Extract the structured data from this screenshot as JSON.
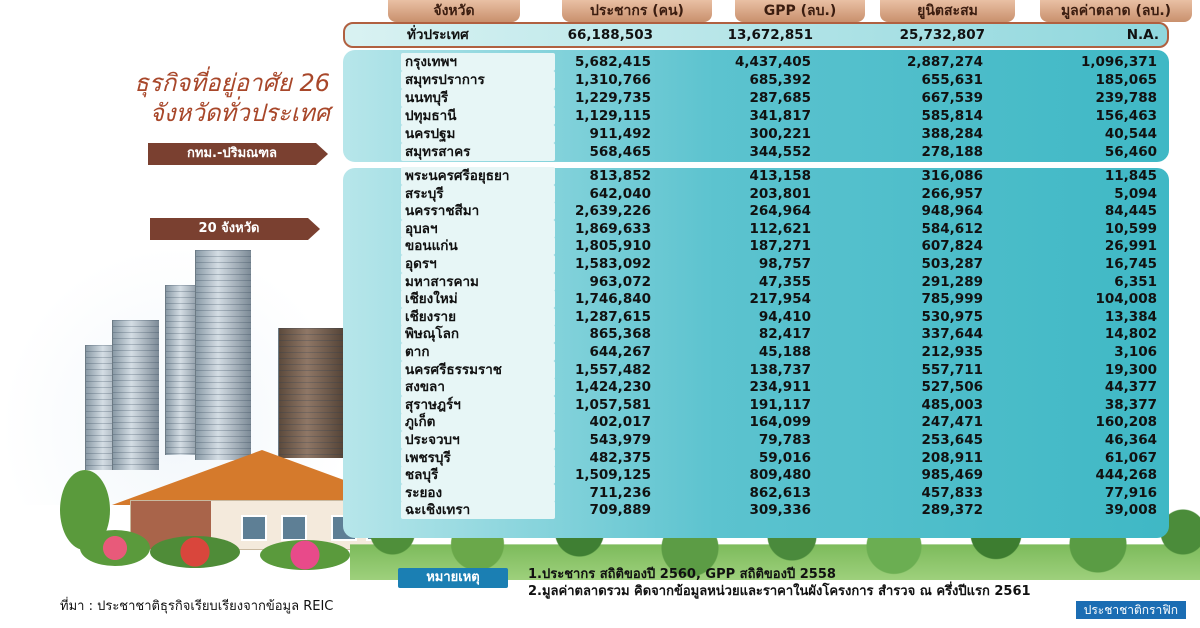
{
  "title": {
    "line1": "ธุรกิจที่อยู่อาศัย 26",
    "line2": "จังหวัดทั่วประเทศ"
  },
  "group_labels": {
    "bkk": "กทม.-ปริมณฑล",
    "twenty": "20 จังหวัด"
  },
  "columns": {
    "province": "จังหวัด",
    "population": "ประชากร (คน)",
    "gpp": "GPP (ลบ.)",
    "accumulated_units": "ยูนิตสะสม",
    "market_value": "มูลค่าตลาด (ลบ.)"
  },
  "national": {
    "name": "ทั่วประเทศ",
    "population": "66,188,503",
    "gpp": "13,672,851",
    "units": "25,732,807",
    "market": "N.A."
  },
  "bkk_rows": [
    {
      "name": "กรุงเทพฯ",
      "population": "5,682,415",
      "gpp": "4,437,405",
      "units": "2,887,274",
      "market": "1,096,371"
    },
    {
      "name": "สมุทรปราการ",
      "population": "1,310,766",
      "gpp": "685,392",
      "units": "655,631",
      "market": "185,065"
    },
    {
      "name": "นนทบุรี",
      "population": "1,229,735",
      "gpp": "287,685",
      "units": "667,539",
      "market": "239,788"
    },
    {
      "name": "ปทุมธานี",
      "population": "1,129,115",
      "gpp": "341,817",
      "units": "585,814",
      "market": "156,463"
    },
    {
      "name": "นครปฐม",
      "population": "911,492",
      "gpp": "300,221",
      "units": "388,284",
      "market": "40,544"
    },
    {
      "name": "สมุทรสาคร",
      "population": "568,465",
      "gpp": "344,552",
      "units": "278,188",
      "market": "56,460"
    }
  ],
  "province_rows": [
    {
      "name": "พระนครศรีอยุธยา",
      "population": "813,852",
      "gpp": "413,158",
      "units": "316,086",
      "market": "11,845"
    },
    {
      "name": "สระบุรี",
      "population": "642,040",
      "gpp": "203,801",
      "units": "266,957",
      "market": "5,094"
    },
    {
      "name": "นครราชสีมา",
      "population": "2,639,226",
      "gpp": "264,964",
      "units": "948,964",
      "market": "84,445"
    },
    {
      "name": "อุบลฯ",
      "population": "1,869,633",
      "gpp": "112,621",
      "units": "584,612",
      "market": "10,599"
    },
    {
      "name": "ขอนแก่น",
      "population": "1,805,910",
      "gpp": "187,271",
      "units": "607,824",
      "market": "26,991"
    },
    {
      "name": "อุดรฯ",
      "population": "1,583,092",
      "gpp": "98,757",
      "units": "503,287",
      "market": "16,745"
    },
    {
      "name": "มหาสารคาม",
      "population": "963,072",
      "gpp": "47,355",
      "units": "291,289",
      "market": "6,351"
    },
    {
      "name": "เชียงใหม่",
      "population": "1,746,840",
      "gpp": "217,954",
      "units": "785,999",
      "market": "104,008"
    },
    {
      "name": "เชียงราย",
      "population": "1,287,615",
      "gpp": "94,410",
      "units": "530,975",
      "market": "13,384"
    },
    {
      "name": "พิษณุโลก",
      "population": "865,368",
      "gpp": "82,417",
      "units": "337,644",
      "market": "14,802"
    },
    {
      "name": "ตาก",
      "population": "644,267",
      "gpp": "45,188",
      "units": "212,935",
      "market": "3,106"
    },
    {
      "name": "นครศรีธรรมราช",
      "population": "1,557,482",
      "gpp": "138,737",
      "units": "557,711",
      "market": "19,300"
    },
    {
      "name": "สงขลา",
      "population": "1,424,230",
      "gpp": "234,911",
      "units": "527,506",
      "market": "44,377"
    },
    {
      "name": "สุราษฎร์ฯ",
      "population": "1,057,581",
      "gpp": "191,117",
      "units": "485,003",
      "market": "38,377"
    },
    {
      "name": "ภูเก็ต",
      "population": "402,017",
      "gpp": "164,099",
      "units": "247,471",
      "market": "160,208"
    },
    {
      "name": "ประจวบฯ",
      "population": "543,979",
      "gpp": "79,783",
      "units": "253,645",
      "market": "46,364"
    },
    {
      "name": "เพชรบุรี",
      "population": "482,375",
      "gpp": "59,016",
      "units": "208,911",
      "market": "61,067"
    },
    {
      "name": "ชลบุรี",
      "population": "1,509,125",
      "gpp": "809,480",
      "units": "985,469",
      "market": "444,268"
    },
    {
      "name": "ระยอง",
      "population": "711,236",
      "gpp": "862,613",
      "units": "457,833",
      "market": "77,916"
    },
    {
      "name": "ฉะเชิงเทรา",
      "population": "709,889",
      "gpp": "309,336",
      "units": "289,372",
      "market": "39,008"
    }
  ],
  "notes": {
    "tag": "หมายเหตุ",
    "line1": "1.ประชากร สถิติของปี 2560, GPP สถิติของปี 2558",
    "line2": "2.มูลค่าตลาดรวม คิดจากข้อมูลหน่วยและราคาในผังโครงการ สำรวจ ณ ครึ่งปีแรก 2561"
  },
  "source": "ที่มา : ประชาชาติธุรกิจเรียบเรียงจากข้อมูล REIC",
  "brand": "ประชาชาติกราฟิก"
}
